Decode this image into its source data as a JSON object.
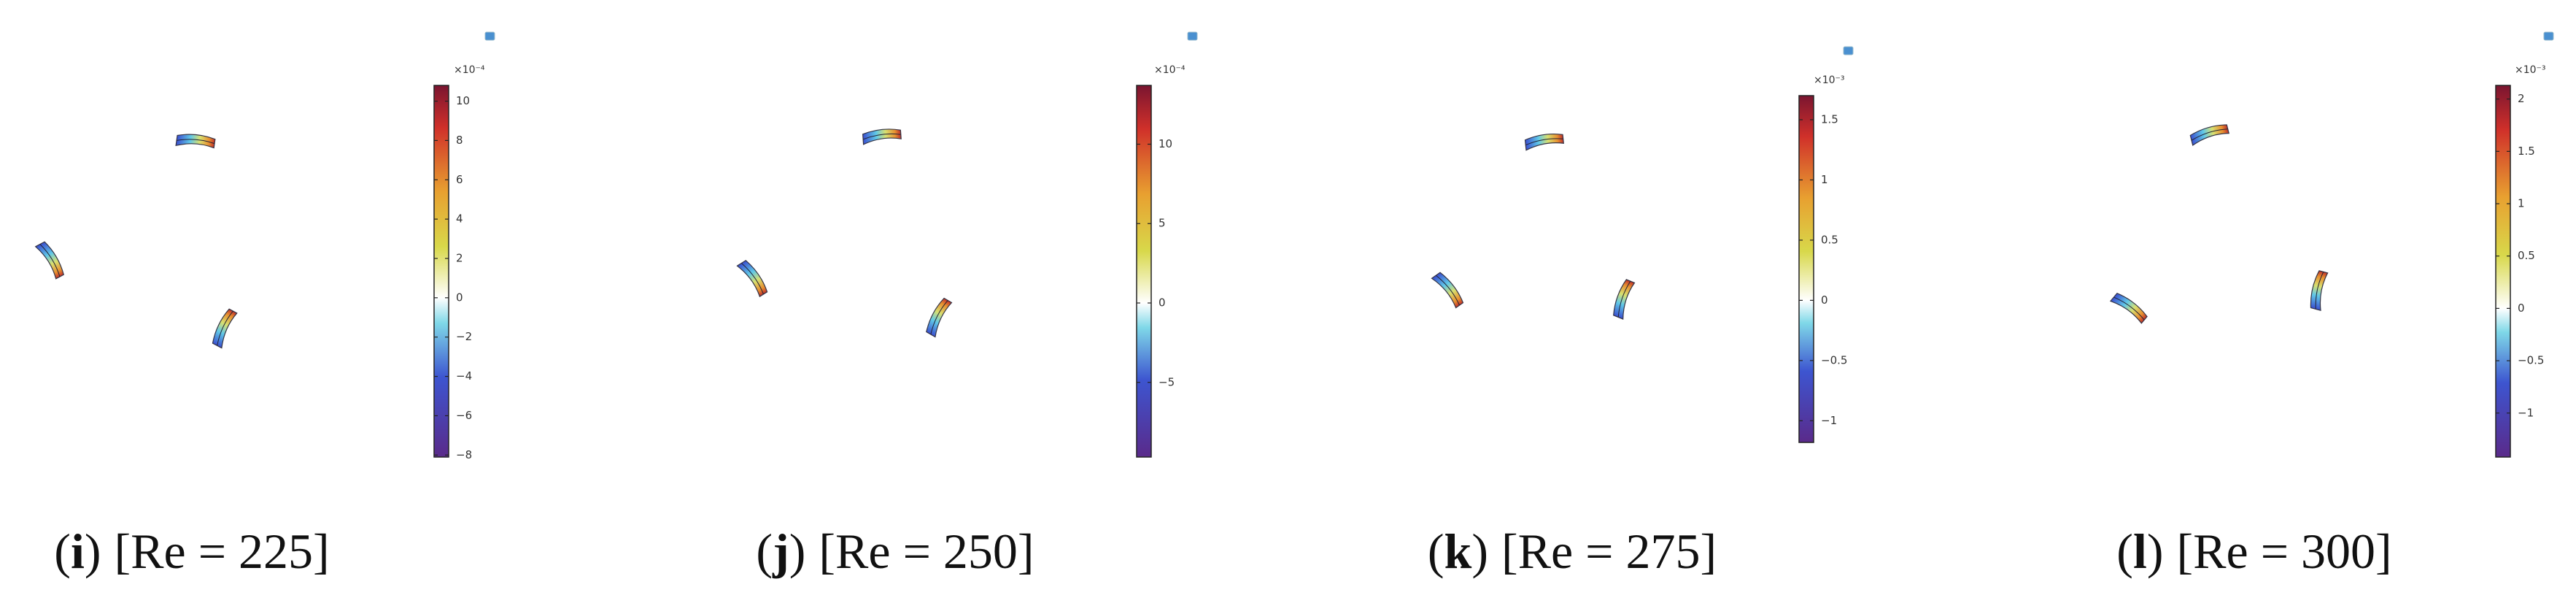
{
  "panels": [
    {
      "label": "(i)",
      "caption": "[Re = 225]",
      "colorbar": {
        "exponent": "×10⁻⁴",
        "lim": [
          -8.1,
          10.8
        ],
        "ticks": [
          {
            "value": -8,
            "label": "−8"
          },
          {
            "value": -6,
            "label": "−6"
          },
          {
            "value": -4,
            "label": "−4"
          },
          {
            "value": -2,
            "label": "−2"
          },
          0,
          2,
          4,
          6,
          8,
          10
        ]
      }
    },
    {
      "label": "(j)",
      "caption": "[Re = 250]",
      "colorbar": {
        "exponent": "×10⁻⁴",
        "lim": [
          -9.7,
          13.7
        ],
        "ticks": [
          {
            "value": -5,
            "label": "−5"
          },
          0,
          5,
          10
        ]
      }
    },
    {
      "label": "(k)",
      "caption": "[Re = 275]",
      "colorbar": {
        "exponent": "×10⁻³",
        "lim": [
          -1.18,
          1.7
        ],
        "ticks": [
          {
            "value": -1,
            "label": "−1"
          },
          {
            "value": -0.5,
            "label": "−0.5"
          },
          0,
          0.5,
          1,
          1.5
        ]
      }
    },
    {
      "label": "(l)",
      "caption": "[Re = 300]",
      "colorbar": {
        "exponent": "×10⁻³",
        "lim": [
          -1.42,
          2.13
        ],
        "ticks": [
          {
            "value": -1,
            "label": "−1"
          },
          {
            "value": -0.5,
            "label": "−0.5"
          },
          0,
          0.5,
          1,
          1.5,
          2
        ]
      }
    }
  ]
}
